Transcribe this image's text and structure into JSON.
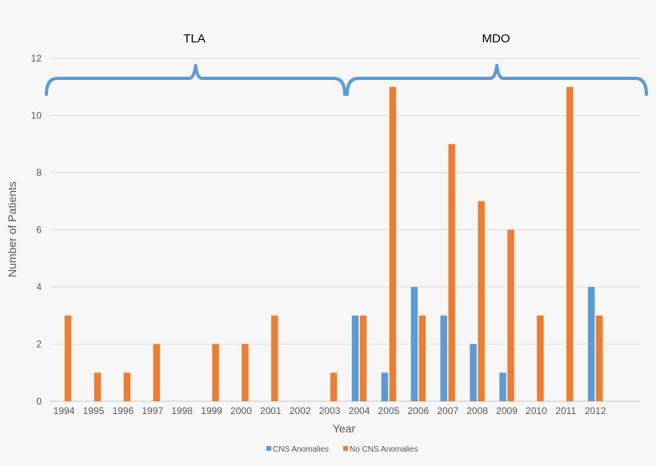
{
  "chart_data": {
    "type": "bar",
    "title": "",
    "xlabel": "Year",
    "ylabel": "Number of Patients",
    "ylim": [
      0,
      12
    ],
    "yticks": [
      "0",
      "2",
      "4",
      "6",
      "8",
      "10",
      "12"
    ],
    "grid": true,
    "legend_position": "bottom-center",
    "categories": [
      "1994",
      "1995",
      "1996",
      "1997",
      "1998",
      "1999",
      "2000",
      "2001",
      "2002",
      "2003",
      "2004",
      "2005",
      "2006",
      "2007",
      "2008",
      "2009",
      "2010",
      "2011",
      "2012"
    ],
    "series": [
      {
        "name": "CNS Anomalies",
        "color": "#5b9bd5",
        "values": [
          0,
          0,
          0,
          0,
          0,
          0,
          0,
          0,
          0,
          0,
          3,
          1,
          4,
          3,
          2,
          1,
          0,
          0,
          4
        ]
      },
      {
        "name": "No CNS Anomalies",
        "color": "#ed7d31",
        "values": [
          3,
          1,
          1,
          2,
          0,
          2,
          2,
          3,
          0,
          1,
          3,
          11,
          3,
          9,
          7,
          6,
          3,
          11,
          3
        ]
      }
    ],
    "annotations": [
      {
        "label": "TLA",
        "from_category": "1994",
        "to_category": "2003"
      },
      {
        "label": "MDO",
        "from_category": "2004",
        "to_category": "2012"
      }
    ]
  }
}
